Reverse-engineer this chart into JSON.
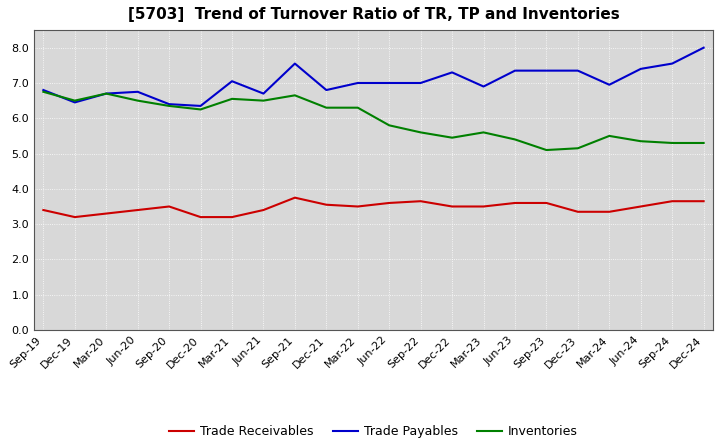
{
  "title": "[5703]  Trend of Turnover Ratio of TR, TP and Inventories",
  "x_labels": [
    "Sep-19",
    "Dec-19",
    "Mar-20",
    "Jun-20",
    "Sep-20",
    "Dec-20",
    "Mar-21",
    "Jun-21",
    "Sep-21",
    "Dec-21",
    "Mar-22",
    "Jun-22",
    "Sep-22",
    "Dec-22",
    "Mar-23",
    "Jun-23",
    "Sep-23",
    "Dec-23",
    "Mar-24",
    "Jun-24",
    "Sep-24",
    "Dec-24"
  ],
  "trade_receivables": [
    3.4,
    3.2,
    3.3,
    3.4,
    3.5,
    3.2,
    3.2,
    3.4,
    3.75,
    3.55,
    3.5,
    3.6,
    3.65,
    3.5,
    3.5,
    3.6,
    3.6,
    3.35,
    3.35,
    3.5,
    3.65,
    3.65
  ],
  "trade_payables": [
    6.8,
    6.45,
    6.7,
    6.75,
    6.4,
    6.35,
    7.05,
    6.7,
    7.55,
    6.8,
    7.0,
    7.0,
    7.0,
    7.3,
    6.9,
    7.35,
    7.35,
    7.35,
    6.95,
    7.4,
    7.55,
    8.0
  ],
  "inventories": [
    6.75,
    6.5,
    6.7,
    6.5,
    6.35,
    6.25,
    6.55,
    6.5,
    6.65,
    6.3,
    6.3,
    5.8,
    5.6,
    5.45,
    5.6,
    5.4,
    5.1,
    5.15,
    5.5,
    5.35,
    5.3,
    5.3
  ],
  "tr_color": "#cc0000",
  "tp_color": "#0000cc",
  "inv_color": "#008000",
  "ylim": [
    0.0,
    8.5
  ],
  "yticks": [
    0.0,
    1.0,
    2.0,
    3.0,
    4.0,
    5.0,
    6.0,
    7.0,
    8.0
  ],
  "legend_tr": "Trade Receivables",
  "legend_tp": "Trade Payables",
  "legend_inv": "Inventories",
  "plot_bg_color": "#d8d8d8",
  "fig_bg": "#ffffff",
  "grid_color": "#ffffff",
  "linewidth": 1.5,
  "title_fontsize": 11,
  "tick_fontsize": 8,
  "legend_fontsize": 9
}
